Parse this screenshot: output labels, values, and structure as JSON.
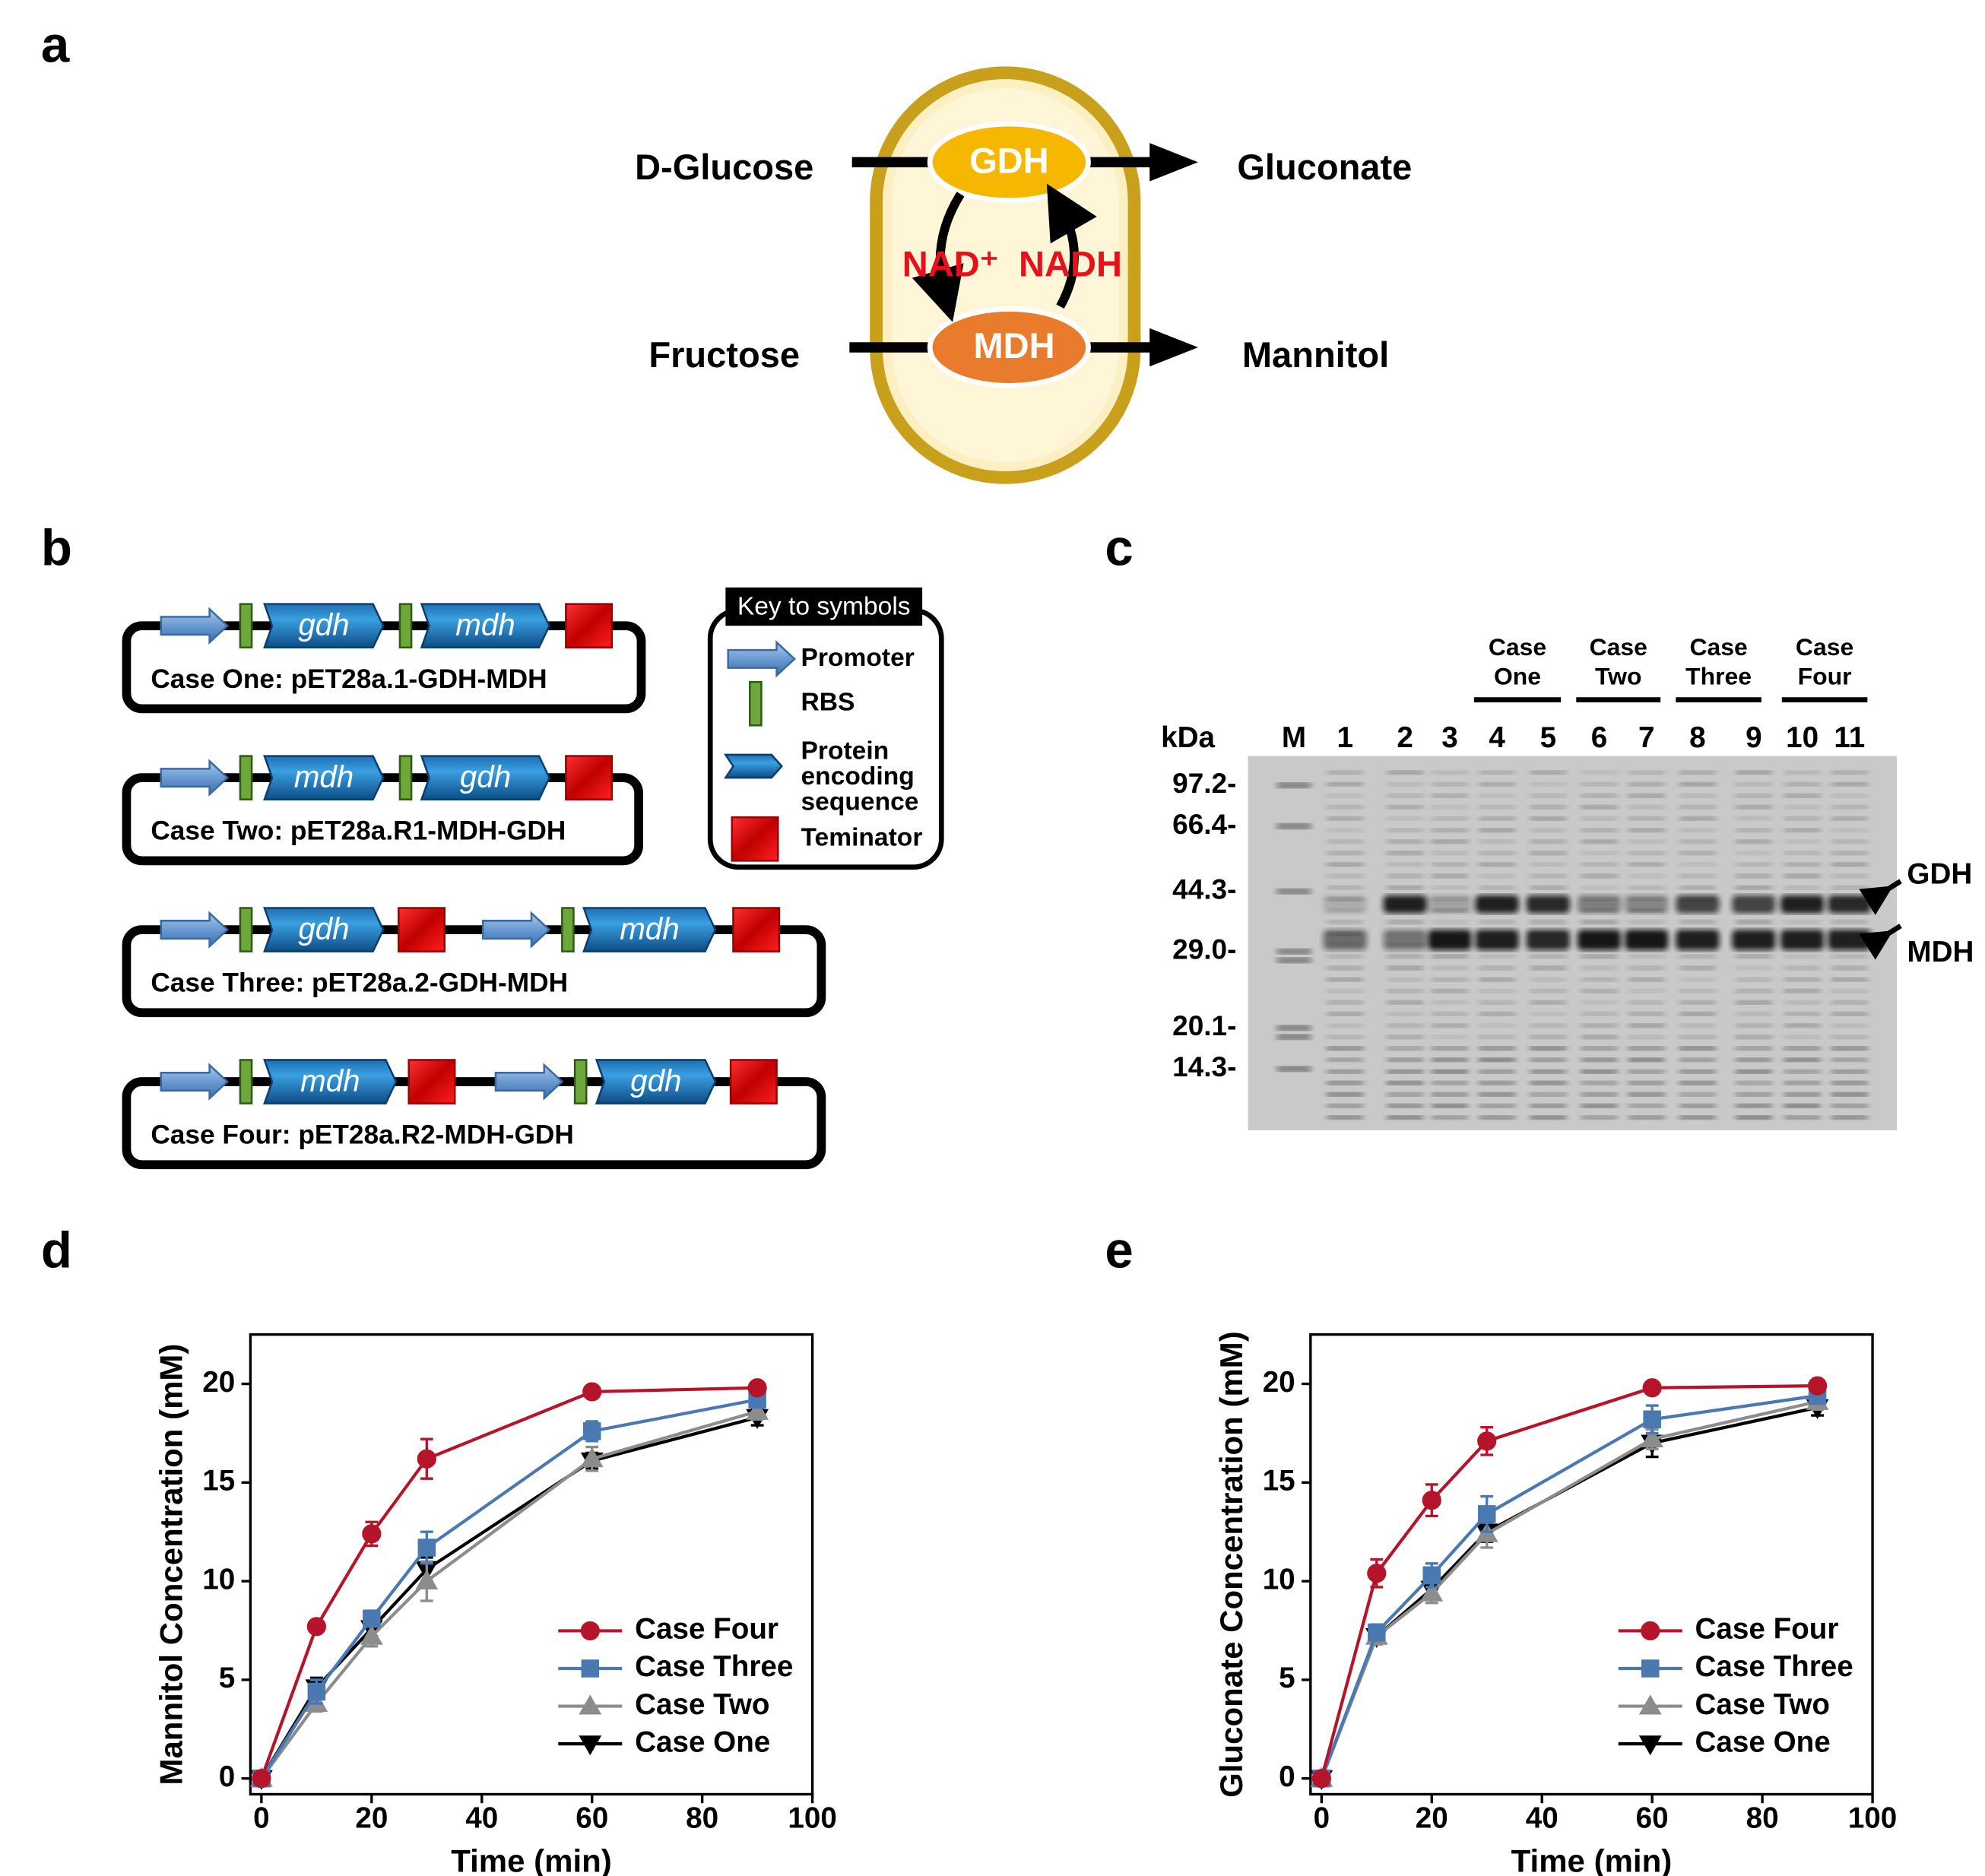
{
  "panel_a": {
    "letter": "a",
    "substrates": [
      "D-Glucose",
      "Fructose"
    ],
    "products": [
      "Gluconate",
      "Mannitol"
    ],
    "enzymes": [
      "GDH",
      "MDH"
    ],
    "cofactors": [
      "NAD⁺",
      "NADH"
    ]
  },
  "panel_b": {
    "letter": "b",
    "constructs": [
      {
        "genes": [
          "gdh",
          "mdh"
        ],
        "label": "Case One: pET28a.1-GDH-MDH"
      },
      {
        "genes": [
          "mdh",
          "gdh"
        ],
        "label": "Case Two: pET28a.R1-MDH-GDH"
      },
      {
        "genes": [
          "gdh",
          "mdh"
        ],
        "label": "Case Three: pET28a.2-GDH-MDH"
      },
      {
        "genes": [
          "mdh",
          "gdh"
        ],
        "label": "Case Four: pET28a.R2-MDH-GDH"
      }
    ],
    "key": {
      "title": "Key to symbols",
      "items": [
        [
          "Promoter"
        ],
        [
          "RBS"
        ],
        [
          "Protein",
          "encoding",
          "sequence"
        ],
        [
          "Teminator"
        ]
      ]
    }
  },
  "panel_c": {
    "letter": "c",
    "unit": "kDa",
    "lanes": [
      "M",
      "1",
      "2",
      "3",
      "4",
      "5",
      "6",
      "7",
      "8",
      "9",
      "10",
      "11"
    ],
    "ladder": [
      "97.2-",
      "66.4-",
      "44.3-",
      "29.0-",
      "20.1-",
      "14.3-"
    ],
    "groups": [
      [
        "Case",
        "One"
      ],
      [
        "Case",
        "Two"
      ],
      [
        "Case",
        "Three"
      ],
      [
        "Case",
        "Four"
      ]
    ],
    "bands": [
      "GDH",
      "MDH"
    ]
  },
  "chart_data": [
    {
      "panel": "d",
      "type": "line",
      "x_label": "Time (min)",
      "y_label": "Mannitol Concentration (mM)",
      "x": [
        0,
        10,
        20,
        30,
        60,
        90
      ],
      "xlim": [
        -2,
        100
      ],
      "xticks": [
        0,
        20,
        40,
        60,
        80,
        100
      ],
      "ylim": [
        -0.8,
        22.5
      ],
      "yticks": [
        0,
        5,
        10,
        15,
        20
      ],
      "legend": "lower right",
      "series": [
        {
          "name": "Case Four",
          "color": "#b5152b",
          "marker": "circle",
          "values": [
            0,
            7.7,
            12.4,
            16.2,
            19.6,
            19.8
          ],
          "errors": [
            0.1,
            0.3,
            0.6,
            1.0,
            0.2,
            0.2
          ]
        },
        {
          "name": "Case Three",
          "color": "#4a78b0",
          "marker": "square",
          "values": [
            0,
            4.4,
            8.1,
            11.7,
            17.6,
            19.2
          ],
          "errors": [
            0.1,
            0.6,
            0.4,
            0.8,
            0.5,
            0.3
          ]
        },
        {
          "name": "Case Two",
          "color": "#8c8c8c",
          "marker": "triangle-up",
          "values": [
            0,
            3.8,
            7.2,
            10.0,
            16.2,
            18.6
          ],
          "errors": [
            0.1,
            0.4,
            0.5,
            1.0,
            0.6,
            0.4
          ]
        },
        {
          "name": "Case One",
          "color": "#000000",
          "marker": "triangle-down",
          "values": [
            0,
            4.6,
            7.6,
            10.6,
            16.1,
            18.3
          ],
          "errors": [
            0.1,
            0.5,
            0.4,
            0.6,
            0.4,
            0.4
          ]
        }
      ]
    },
    {
      "panel": "e",
      "type": "line",
      "x_label": "Time (min)",
      "y_label": "Gluconate Concentration (mM)",
      "x": [
        0,
        10,
        20,
        30,
        60,
        90
      ],
      "xlim": [
        -2,
        100
      ],
      "xticks": [
        0,
        20,
        40,
        60,
        80,
        100
      ],
      "ylim": [
        -0.8,
        22.5
      ],
      "yticks": [
        0,
        5,
        10,
        15,
        20
      ],
      "legend": "lower right",
      "series": [
        {
          "name": "Case Four",
          "color": "#b5152b",
          "marker": "circle",
          "values": [
            0,
            10.4,
            14.1,
            17.1,
            19.8,
            19.9
          ],
          "errors": [
            0.1,
            0.7,
            0.8,
            0.7,
            0.2,
            0.2
          ]
        },
        {
          "name": "Case Three",
          "color": "#4a78b0",
          "marker": "square",
          "values": [
            0,
            7.4,
            10.3,
            13.4,
            18.2,
            19.4
          ],
          "errors": [
            0.1,
            0.4,
            0.6,
            0.9,
            0.7,
            0.4
          ]
        },
        {
          "name": "Case Two",
          "color": "#8c8c8c",
          "marker": "triangle-up",
          "values": [
            0,
            7.2,
            9.4,
            12.4,
            17.2,
            19.1
          ],
          "errors": [
            0.1,
            0.4,
            0.5,
            0.7,
            0.5,
            0.4
          ]
        },
        {
          "name": "Case One",
          "color": "#000000",
          "marker": "triangle-down",
          "values": [
            0,
            7.2,
            9.6,
            12.5,
            17.0,
            18.8
          ],
          "errors": [
            0.1,
            0.3,
            0.4,
            0.5,
            0.7,
            0.4
          ]
        }
      ]
    }
  ]
}
